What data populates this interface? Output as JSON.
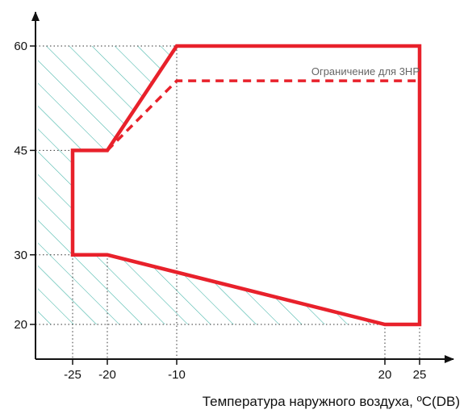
{
  "chart_data": {
    "type": "area",
    "title": "",
    "xlabel": "Температура наружного воздуха, ºC(DB)",
    "ylabel": "",
    "x_ticks": [
      "-25",
      "-20",
      "-10",
      "20",
      "25"
    ],
    "x_tick_values": [
      -25,
      -20,
      -10,
      20,
      25
    ],
    "y_ticks": [
      "60",
      "45",
      "30",
      "20"
    ],
    "y_tick_values": [
      60,
      45,
      30,
      20
    ],
    "xlim": [
      -30,
      28
    ],
    "ylim": [
      15,
      65
    ],
    "grid": "dotted guides at tick values",
    "series": [
      {
        "kind": "operating-envelope",
        "points": [
          [
            -25,
            30
          ],
          [
            -25,
            45
          ],
          [
            -20,
            45
          ],
          [
            -10,
            60
          ],
          [
            25,
            60
          ],
          [
            25,
            20
          ],
          [
            20,
            20
          ],
          [
            -20,
            30
          ]
        ],
        "closed": true
      },
      {
        "name": "Ограничение для 3HP",
        "kind": "limit-line",
        "points": [
          [
            -20,
            45
          ],
          [
            -10,
            55
          ],
          [
            25,
            55
          ]
        ]
      }
    ],
    "hatched_region": {
      "points": [
        [
          -30,
          60
        ],
        [
          -10,
          60
        ],
        [
          -20,
          45
        ],
        [
          -25,
          45
        ],
        [
          -25,
          30
        ],
        [
          -20,
          30
        ],
        [
          20,
          20
        ],
        [
          -30,
          20
        ]
      ]
    },
    "colors": {
      "envelope": "#e8212b",
      "hatch": "#3fb3a6",
      "guides": "#333333",
      "axis": "#111111"
    }
  }
}
